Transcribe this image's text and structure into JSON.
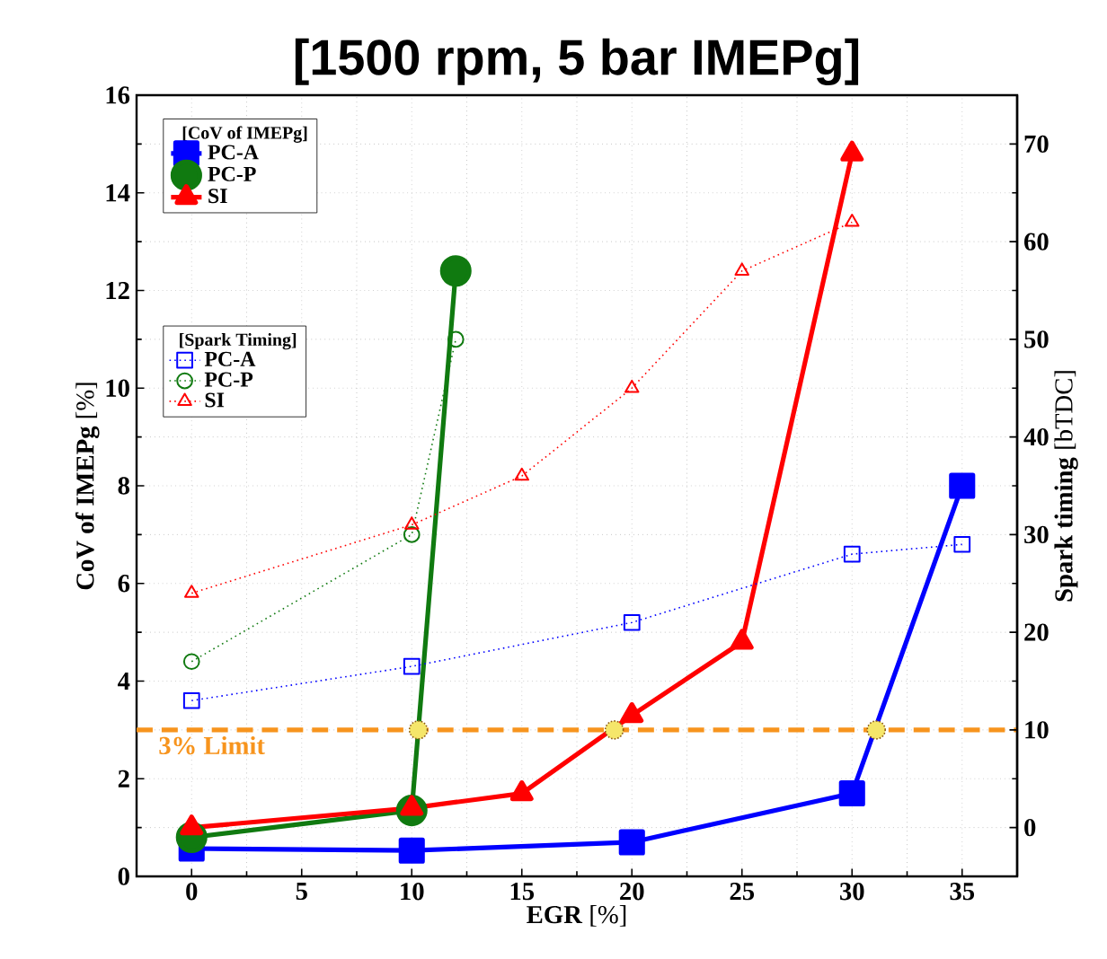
{
  "chart_data": {
    "type": "line",
    "title": "[1500 rpm, 5 bar IMEPg]",
    "xlabel": "**EGR** [%]",
    "ylabel": "**CoV of IMEPg** [%]",
    "y2label": "**Spark timing** [bTDC]",
    "legend_title": "[CoV of IMEPg]",
    "annotations": [
      "[Spark Timing]"
    ],
    "xlim": [
      -2.5,
      37.5
    ],
    "xticks": [
      0,
      5,
      10,
      15,
      20,
      25,
      30,
      35
    ],
    "ylim": [
      0,
      16
    ],
    "yticks": [
      0,
      2,
      4,
      6,
      8,
      10,
      12,
      14,
      16
    ],
    "y2lim": [
      -5,
      75
    ],
    "y2ticks": [
      0,
      10,
      20,
      30,
      40,
      50,
      60,
      70
    ],
    "grid": true,
    "legend": "top left",
    "line_style": "solid",
    "series": [
      {
        "name": "PC-A",
        "color": "#0000ff",
        "marker": "square",
        "x": [
          0,
          10,
          20,
          30,
          35
        ],
        "values": [
          0.57,
          0.53,
          0.7,
          1.7,
          8.0
        ]
      },
      {
        "name": "PC-P",
        "color": "#107a10",
        "marker": "circle",
        "x": [
          0,
          10,
          12
        ],
        "values": [
          0.8,
          1.35,
          12.4
        ]
      },
      {
        "name": "SI",
        "color": "#ff0000",
        "marker": "triangle",
        "x": [
          0,
          10,
          15,
          20,
          25,
          30
        ],
        "values": [
          1.0,
          1.4,
          1.7,
          3.3,
          4.8,
          14.8
        ]
      },
      {
        "name": "PC-A",
        "color": "#0000ff",
        "marker": "square",
        "axis": "y2",
        "line_style": "dotted",
        "x": [
          0,
          10,
          20,
          30,
          35
        ],
        "values": [
          13,
          16.5,
          21,
          28,
          29
        ]
      },
      {
        "name": "PC-P",
        "color": "#107a10",
        "marker": "circle",
        "axis": "y2",
        "line_style": "dotted",
        "x": [
          0,
          10,
          12
        ],
        "values": [
          17,
          30,
          50
        ]
      },
      {
        "name": "SI",
        "color": "#ff0000",
        "marker": "triangle",
        "axis": "y2",
        "line_style": "dotted",
        "x": [
          0,
          10,
          15,
          20,
          25,
          30
        ],
        "values": [
          24,
          31,
          36,
          45,
          57,
          62
        ]
      },
      {
        "type": "scatter",
        "color": "#f5e66a",
        "marker": "circle",
        "x": [
          10.3,
          19.2,
          31.1
        ],
        "values": [
          3,
          3,
          3
        ]
      }
    ],
    "ref_lines": [
      {
        "axis": "y",
        "value": 3,
        "label": "3% Limit",
        "color": "#f7941d",
        "line_style": "dashed"
      }
    ]
  }
}
